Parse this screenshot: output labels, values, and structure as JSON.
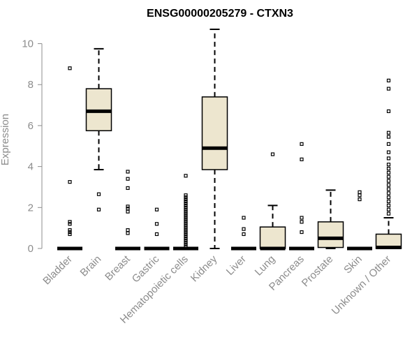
{
  "chart_data": {
    "type": "box",
    "title": "ENSG00000205279 - CTXN3",
    "xlabel": "",
    "ylabel": "Expression",
    "ylim": [
      0,
      10.7
    ],
    "yticks": [
      0,
      2,
      4,
      6,
      8,
      10
    ],
    "box_fill": "#ede6cf",
    "categories": [
      "Bladder",
      "Brain",
      "Breast",
      "Gastric",
      "Hematopoietic cells",
      "Kidney",
      "Liver",
      "Lung",
      "Pancreas",
      "Prostate",
      "Skin",
      "Unknown / Other"
    ],
    "boxes": [
      {
        "label": "Bladder",
        "min": 0,
        "q1": 0,
        "median": 0,
        "q3": 0,
        "max": 0,
        "outliers": [
          0.7,
          0.8,
          0.9,
          1.2,
          1.3,
          3.25,
          8.8
        ]
      },
      {
        "label": "Brain",
        "min": 3.85,
        "q1": 5.75,
        "median": 6.7,
        "q3": 7.8,
        "max": 9.75,
        "outliers": [
          1.9,
          2.65
        ]
      },
      {
        "label": "Breast",
        "min": 0,
        "q1": 0,
        "median": 0,
        "q3": 0,
        "max": 0,
        "outliers": [
          0.75,
          0.9,
          1.8,
          1.95,
          2.05,
          2.95,
          3.4,
          3.75
        ]
      },
      {
        "label": "Gastric",
        "min": 0,
        "q1": 0,
        "median": 0,
        "q3": 0,
        "max": 0,
        "outliers": [
          0.7,
          1.2,
          1.9
        ]
      },
      {
        "label": "Hematopoietic cells",
        "min": 0,
        "q1": 0,
        "median": 0,
        "q3": 0,
        "max": 0,
        "outliers": [
          0.1,
          0.2,
          0.3,
          0.4,
          0.5,
          0.6,
          0.7,
          0.8,
          0.9,
          1.0,
          1.1,
          1.2,
          1.3,
          1.4,
          1.5,
          1.6,
          1.7,
          1.8,
          1.9,
          2.0,
          2.1,
          2.2,
          2.3,
          2.4,
          2.5,
          2.6,
          3.55
        ]
      },
      {
        "label": "Kidney",
        "min": 0,
        "q1": 3.85,
        "median": 4.9,
        "q3": 7.4,
        "max": 10.7,
        "outliers": []
      },
      {
        "label": "Liver",
        "min": 0,
        "q1": 0,
        "median": 0,
        "q3": 0,
        "max": 0,
        "outliers": [
          0.7,
          0.95,
          1.5
        ]
      },
      {
        "label": "Lung",
        "min": 0,
        "q1": 0,
        "median": 0,
        "q3": 1.05,
        "max": 2.1,
        "outliers": [
          4.6
        ]
      },
      {
        "label": "Pancreas",
        "min": 0,
        "q1": 0,
        "median": 0,
        "q3": 0,
        "max": 0,
        "outliers": [
          0.8,
          1.3,
          1.5,
          4.35,
          5.1
        ]
      },
      {
        "label": "Prostate",
        "min": 0,
        "q1": 0.05,
        "median": 0.5,
        "q3": 1.3,
        "max": 2.85,
        "outliers": []
      },
      {
        "label": "Skin",
        "min": 0,
        "q1": 0,
        "median": 0,
        "q3": 0,
        "max": 0,
        "outliers": [
          2.4,
          2.6,
          2.75
        ]
      },
      {
        "label": "Unknown / Other",
        "min": 0,
        "q1": 0,
        "median": 0.05,
        "q3": 0.7,
        "max": 1.5,
        "outliers": [
          1.7,
          1.9,
          2.1,
          2.3,
          2.5,
          2.7,
          2.9,
          3.1,
          3.3,
          3.5,
          3.7,
          3.9,
          4.1,
          4.4,
          4.7,
          5.1,
          5.45,
          5.65,
          6.7,
          7.8,
          8.2
        ]
      }
    ]
  }
}
